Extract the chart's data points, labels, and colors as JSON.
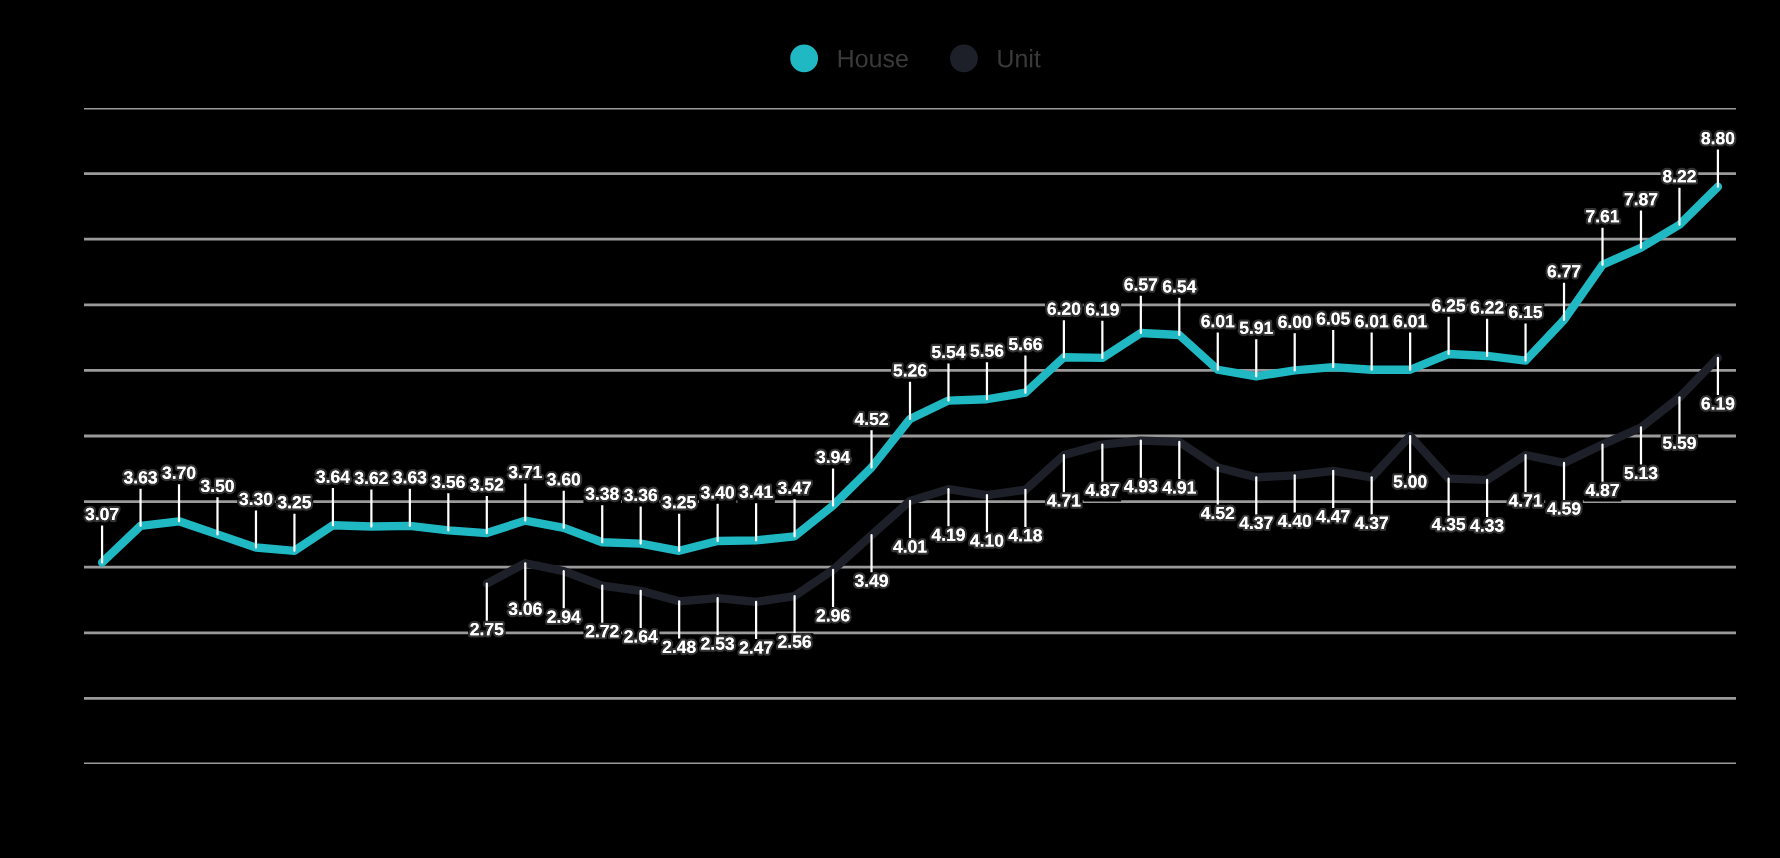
{
  "chart_data": {
    "type": "line",
    "categories": [
      null,
      null,
      null,
      null,
      null,
      null,
      null,
      null,
      null,
      null,
      null,
      null,
      null,
      null,
      null,
      null,
      null,
      null,
      null,
      null,
      null,
      null,
      null,
      null,
      null,
      null,
      null,
      null,
      null,
      null,
      null,
      null,
      null,
      null,
      null,
      null,
      null,
      null,
      null,
      null,
      null,
      null,
      null
    ],
    "series": [
      {
        "name": "House",
        "color": "#1fb8c3",
        "values": [
          3.07,
          3.63,
          3.7,
          3.5,
          3.3,
          3.25,
          3.64,
          3.62,
          3.63,
          3.56,
          3.52,
          3.71,
          3.6,
          3.38,
          3.36,
          3.25,
          3.4,
          3.41,
          3.47,
          3.94,
          4.52,
          5.26,
          5.54,
          5.56,
          5.66,
          6.2,
          6.19,
          6.57,
          6.54,
          6.01,
          5.91,
          6.0,
          6.05,
          6.01,
          6.01,
          6.25,
          6.22,
          6.15,
          6.77,
          7.61,
          7.87,
          8.22,
          8.8
        ],
        "value_labels": [
          "3.07",
          "3.63",
          "3.70",
          "3.50",
          "3.30",
          "3.25",
          "3.64",
          "3.62",
          "3.63",
          "3.56",
          "3.52",
          "3.71",
          "3.60",
          "3.38",
          "3.36",
          "3.25",
          "3.40",
          "3.41",
          "3.47",
          "3.94",
          "4.52",
          "5.26",
          "5.54",
          "5.56",
          "5.66",
          "6.20",
          "6.19",
          "6.57",
          "6.54",
          "6.01",
          "5.91",
          "6.00",
          "6.05",
          "6.01",
          "6.01",
          "6.25",
          "6.22",
          "6.15",
          "6.77",
          "7.61",
          "7.87",
          "8.22",
          "8.80"
        ]
      },
      {
        "name": "Unit",
        "color": "#1e2029",
        "values": [
          null,
          null,
          null,
          null,
          null,
          null,
          null,
          null,
          null,
          null,
          2.75,
          3.06,
          2.94,
          2.72,
          2.64,
          2.48,
          2.53,
          2.47,
          2.56,
          2.96,
          3.49,
          4.01,
          4.19,
          4.1,
          4.18,
          4.71,
          4.87,
          4.93,
          4.91,
          4.52,
          4.37,
          4.4,
          4.47,
          4.37,
          5.0,
          4.35,
          4.33,
          4.71,
          4.59,
          4.87,
          5.13,
          5.59,
          6.19
        ],
        "value_labels": [
          null,
          null,
          null,
          null,
          null,
          null,
          null,
          null,
          null,
          null,
          "2.75",
          "3.06",
          "2.94",
          "2.72",
          "2.64",
          "2.48",
          "2.53",
          "2.47",
          "2.56",
          "2.96",
          "3.49",
          "4.01",
          "4.19",
          "4.10",
          "4.18",
          "4.71",
          "4.87",
          "4.93",
          "4.91",
          "4.52",
          "4.37",
          "4.40",
          "4.47",
          "4.37",
          "5.00",
          "4.35",
          "4.33",
          "4.71",
          "4.59",
          "4.87",
          "5.13",
          "5.59",
          "6.19"
        ]
      }
    ],
    "ylim": [
      0,
      10
    ],
    "yticks": [
      {
        "value": 0,
        "label": null
      },
      {
        "value": 1,
        "label": null
      },
      {
        "value": 2,
        "label": null
      },
      {
        "value": 3,
        "label": null
      },
      {
        "value": 4,
        "label": null
      },
      {
        "value": 5,
        "label": null
      },
      {
        "value": 6,
        "label": null
      },
      {
        "value": 7,
        "label": null
      },
      {
        "value": 8,
        "label": null
      },
      {
        "value": 9,
        "label": null
      },
      {
        "value": 10,
        "label": null
      }
    ],
    "grid": "y",
    "legend": "top",
    "marker": "none",
    "line_style": "solid"
  }
}
